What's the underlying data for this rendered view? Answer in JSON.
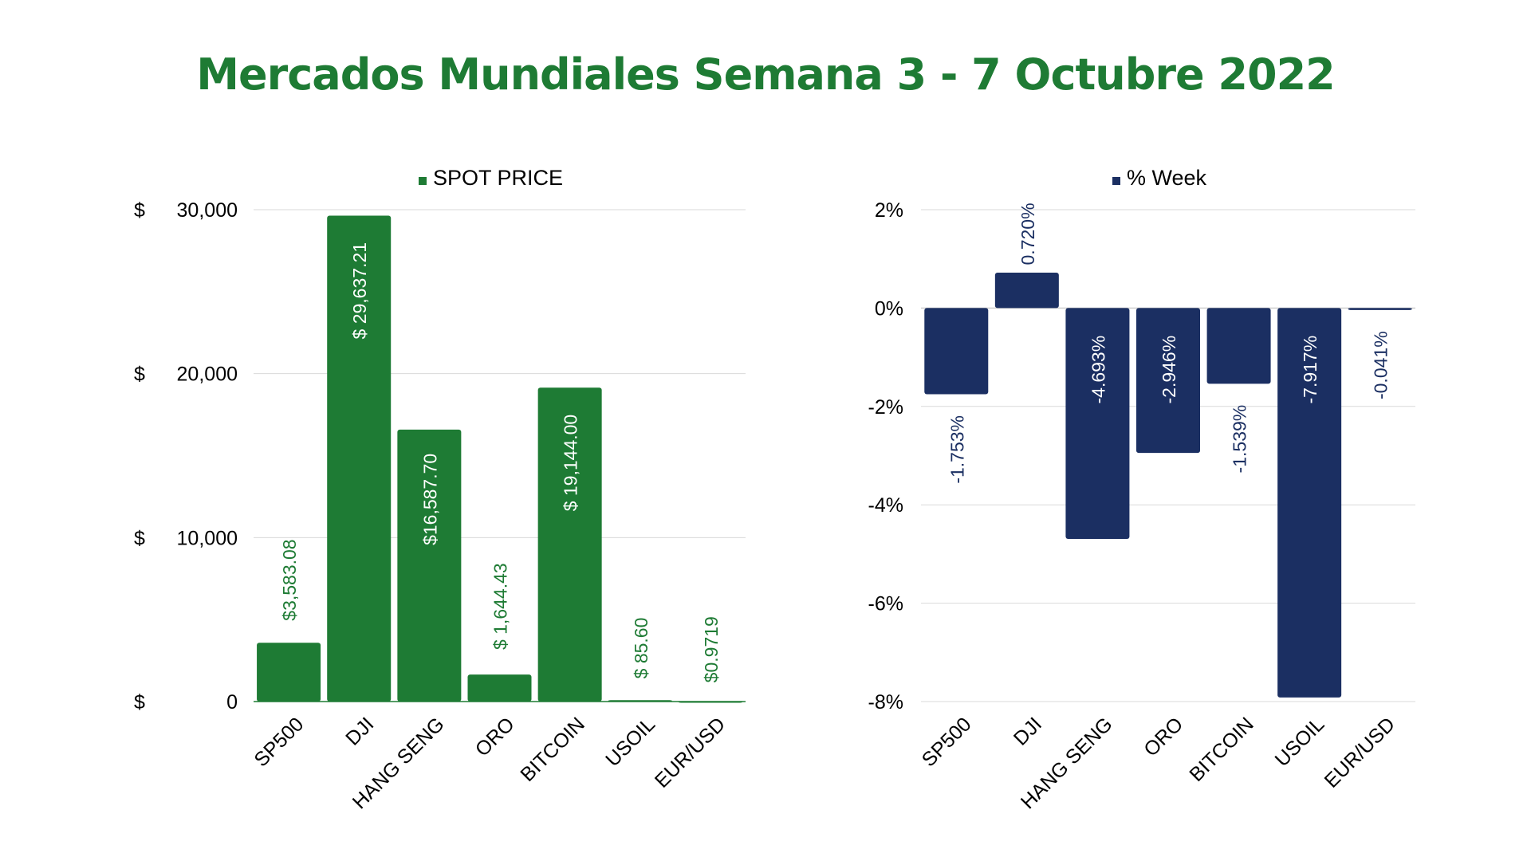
{
  "title": "Mercados Mundiales Semana 3 - 7 Octubre 2022",
  "colors": {
    "title": "#1e7b34",
    "spot": "#1e7b34",
    "week": "#1b2f62",
    "grid": "#d9d9d9",
    "axis_text": "#000000"
  },
  "chart_data": [
    {
      "type": "bar",
      "legend": "SPOT PRICE",
      "legend_position": "top",
      "grid": true,
      "categories": [
        "SP500",
        "DJI",
        "HANG SENG",
        "ORO",
        "BITCOIN",
        "USOIL",
        "EUR/USD"
      ],
      "series": [
        {
          "name": "SPOT PRICE",
          "values": [
            3583.08,
            29637.21,
            16587.7,
            1644.43,
            19144.0,
            85.6,
            0.9719
          ],
          "data_labels": [
            "$3,583.08",
            "$ 29,637.21",
            "$16,587.70",
            "$ 1,644.43",
            "$ 19,144.00",
            "$ 85.60",
            "$0.9719"
          ]
        }
      ],
      "ylim": [
        0,
        30000
      ],
      "yticks": [
        0,
        10000,
        20000,
        30000
      ],
      "ytick_labels": [
        "$ 0",
        "$ 10,000",
        "$ 20,000",
        "$ 30,000"
      ]
    },
    {
      "type": "bar",
      "legend": "% Week",
      "legend_position": "top",
      "grid": true,
      "categories": [
        "SP500",
        "DJI",
        "HANG SENG",
        "ORO",
        "BITCOIN",
        "USOIL",
        "EUR/USD"
      ],
      "series": [
        {
          "name": "% Week",
          "values": [
            -1.753,
            0.72,
            -4.693,
            -2.946,
            -1.539,
            -7.917,
            -0.041
          ],
          "data_labels": [
            "-1.753%",
            "0.720%",
            "-4.693%",
            "-2.946%",
            "-1.539%",
            "-7.917%",
            "-0.041%"
          ]
        }
      ],
      "ylim": [
        -8,
        2
      ],
      "yticks": [
        -8,
        -6,
        -4,
        -2,
        0,
        2
      ],
      "ytick_labels": [
        "-8%",
        "-6%",
        "-4%",
        "-2%",
        "0%",
        "2%"
      ]
    }
  ]
}
